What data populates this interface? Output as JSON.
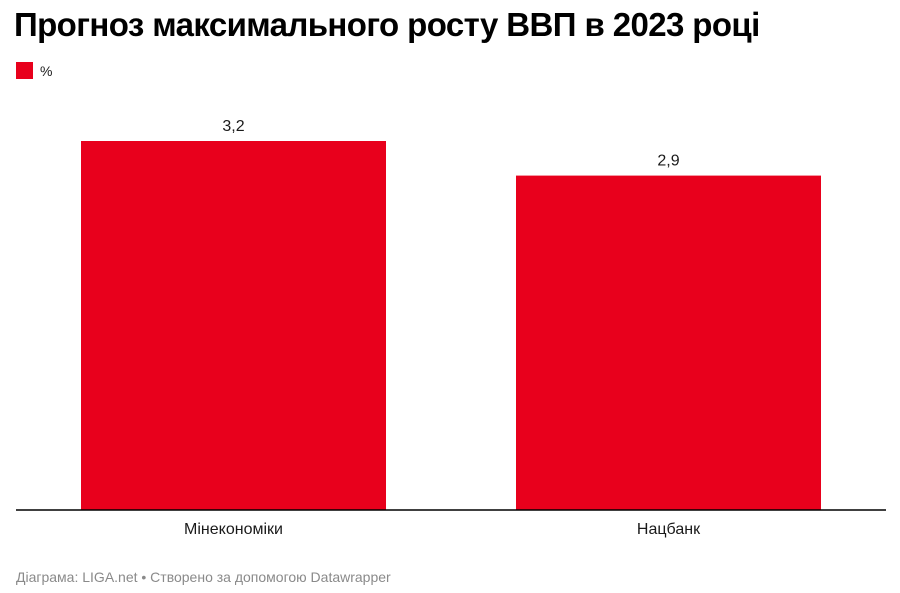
{
  "title": "Прогноз максимального росту ВВП в 2023 році",
  "legend": {
    "label": "%",
    "color": "#e8001c"
  },
  "footer": {
    "source": "Діаграма: LIGA.net • Створено за допомогою Datawrapper"
  },
  "chart_data": {
    "type": "bar",
    "categories": [
      "Мінекономіки",
      "Нацбанк"
    ],
    "series": [
      {
        "name": "%",
        "values": [
          3.2,
          2.9
        ],
        "labels": [
          "3,2",
          "2,9"
        ],
        "color": "#e8001c"
      }
    ],
    "ylim": [
      0,
      3.2
    ],
    "grid": false,
    "legend_position": "top-left"
  }
}
